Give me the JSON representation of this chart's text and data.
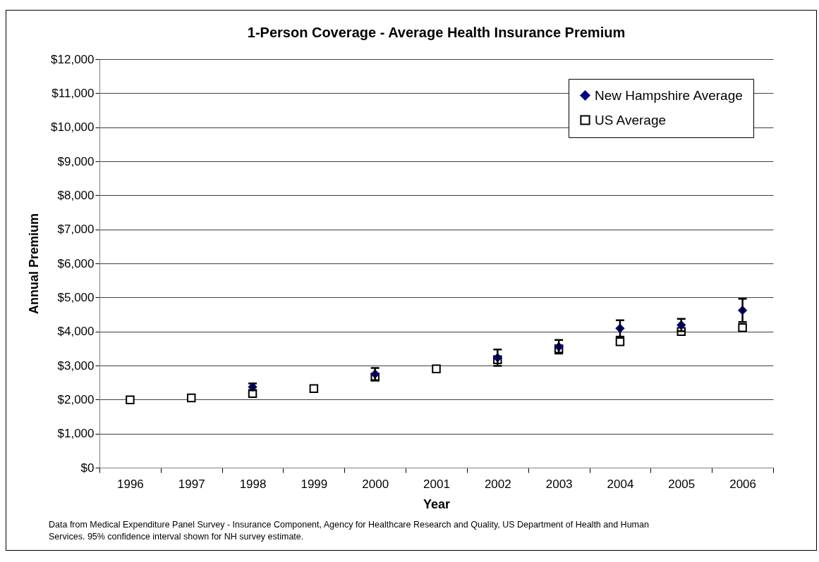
{
  "chart_data": {
    "type": "scatter",
    "title": "1-Person Coverage - Average Health Insurance Premium",
    "xlabel": "Year",
    "ylabel": "Annual Premium",
    "categories": [
      "1996",
      "1997",
      "1998",
      "1999",
      "2000",
      "2001",
      "2002",
      "2003",
      "2004",
      "2005",
      "2006"
    ],
    "series": [
      {
        "name": "New Hampshire Average",
        "color": "#000080",
        "marker": "diamond",
        "values": [
          null,
          null,
          2370,
          null,
          2750,
          null,
          3230,
          3550,
          4090,
          4190,
          4620
        ],
        "errors": [
          null,
          null,
          100,
          null,
          180,
          null,
          240,
          200,
          240,
          180,
          340
        ]
      },
      {
        "name": "US Average",
        "color": "#000000",
        "marker": "square",
        "values": [
          1990,
          2050,
          2180,
          2320,
          2660,
          2900,
          3170,
          3490,
          3700,
          4000,
          4110
        ]
      }
    ],
    "ylim": [
      0,
      12000
    ],
    "yticks": [
      {
        "value": 0,
        "label": "$0"
      },
      {
        "value": 1000,
        "label": "$1,000"
      },
      {
        "value": 2000,
        "label": "$2,000"
      },
      {
        "value": 3000,
        "label": "$3,000"
      },
      {
        "value": 4000,
        "label": "$4,000"
      },
      {
        "value": 5000,
        "label": "$5,000"
      },
      {
        "value": 6000,
        "label": "$6,000"
      },
      {
        "value": 7000,
        "label": "$7,000"
      },
      {
        "value": 8000,
        "label": "$8,000"
      },
      {
        "value": 9000,
        "label": "$9,000"
      },
      {
        "value": 10000,
        "label": "$10,000"
      },
      {
        "value": 11000,
        "label": "$11,000"
      },
      {
        "value": 12000,
        "label": "$12,000"
      }
    ],
    "grid": "y",
    "legend": "top right",
    "annotations": [
      "Data from Medical Expenditure Panel Survey - Insurance Component, Agency for Healthcare Research and Quality, US Department of Health and Human Services. 95% confidence interval shown for NH survey estimate."
    ]
  }
}
